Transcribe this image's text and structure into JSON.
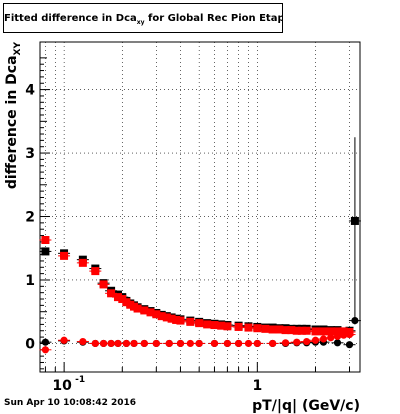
{
  "header": {
    "title_pre": "Fitted difference in Dca",
    "title_sub": "xy",
    "title_post": " for Global Rec Pion EtapT"
  },
  "footer": {
    "timestamp": "Sun Apr 10 10:08:42 2016"
  },
  "chart_data": {
    "type": "scatter",
    "xscale": "log",
    "xlim": [
      0.075,
      3.4
    ],
    "ylim": [
      -0.45,
      4.75
    ],
    "xlabel": "pT/|q| (GeV/c)",
    "ylabel_pre": "difference in Dca",
    "ylabel_sub": "XY",
    "grid": true,
    "x_tick_labels": [
      {
        "x": 0.1,
        "label": "10",
        "exp": "-1"
      },
      {
        "x": 1,
        "label": "1",
        "exp": ""
      }
    ],
    "y_tick_labels": [
      {
        "y": 0,
        "label": "0"
      },
      {
        "y": 1,
        "label": "1"
      },
      {
        "y": 2,
        "label": "2"
      },
      {
        "y": 3,
        "label": "3"
      },
      {
        "y": 4,
        "label": "4"
      }
    ],
    "series": [
      {
        "color": "#000000",
        "marker": "square",
        "points": [
          [
            0.08,
            1.45
          ],
          [
            0.0999,
            1.42
          ],
          [
            0.125,
            1.32
          ],
          [
            0.145,
            1.18
          ],
          [
            0.16,
            0.95
          ],
          [
            0.175,
            0.83
          ],
          [
            0.19,
            0.77
          ],
          [
            0.2,
            0.73
          ],
          [
            0.21,
            0.67
          ],
          [
            0.22,
            0.63
          ],
          [
            0.23,
            0.6
          ],
          [
            0.24,
            0.57
          ],
          [
            0.26,
            0.54
          ],
          [
            0.28,
            0.51
          ],
          [
            0.3,
            0.48
          ],
          [
            0.32,
            0.45
          ],
          [
            0.34,
            0.43
          ],
          [
            0.36,
            0.41
          ],
          [
            0.38,
            0.39
          ],
          [
            0.4,
            0.38
          ],
          [
            0.45,
            0.36
          ],
          [
            0.5,
            0.34
          ],
          [
            0.55,
            0.32
          ],
          [
            0.6,
            0.31
          ],
          [
            0.65,
            0.3
          ],
          [
            0.7,
            0.29
          ],
          [
            0.8,
            0.28
          ],
          [
            0.9,
            0.27
          ],
          [
            1.0,
            0.26
          ],
          [
            1.1,
            0.25
          ],
          [
            1.2,
            0.25
          ],
          [
            1.3,
            0.24
          ],
          [
            1.4,
            0.24
          ],
          [
            1.5,
            0.23
          ],
          [
            1.6,
            0.23
          ],
          [
            1.7,
            0.23
          ],
          [
            1.8,
            0.23
          ],
          [
            2.0,
            0.22
          ],
          [
            2.2,
            0.22
          ],
          [
            2.4,
            0.21
          ],
          [
            2.6,
            0.21
          ],
          [
            3.0,
            0.2
          ],
          [
            3.2,
            1.93
          ]
        ]
      },
      {
        "color": "#000000",
        "marker": "circle",
        "points": [
          [
            0.08,
            0.02
          ],
          [
            0.0999,
            0.04
          ],
          [
            0.125,
            0.02
          ],
          [
            0.145,
            0.0
          ],
          [
            0.16,
            0.0
          ],
          [
            0.175,
            0.0
          ],
          [
            0.19,
            0.0
          ],
          [
            0.21,
            0.0
          ],
          [
            0.23,
            0.0
          ],
          [
            0.26,
            0.0
          ],
          [
            0.3,
            0.0
          ],
          [
            0.35,
            0.0
          ],
          [
            0.4,
            0.0
          ],
          [
            0.5,
            0.0
          ],
          [
            0.6,
            0.0
          ],
          [
            0.7,
            0.0
          ],
          [
            0.8,
            0.0
          ],
          [
            1.0,
            0.0
          ],
          [
            1.2,
            0.0
          ],
          [
            1.4,
            0.0
          ],
          [
            1.6,
            0.01
          ],
          [
            1.8,
            0.01
          ],
          [
            2.0,
            0.02
          ],
          [
            2.2,
            0.02
          ],
          [
            2.6,
            0.01
          ],
          [
            3.0,
            -0.02
          ],
          [
            3.2,
            0.36
          ]
        ]
      },
      {
        "color": "#ff0000",
        "marker": "square",
        "points": [
          [
            0.08,
            1.63
          ],
          [
            0.0999,
            1.38
          ],
          [
            0.125,
            1.27
          ],
          [
            0.145,
            1.14
          ],
          [
            0.16,
            0.93
          ],
          [
            0.175,
            0.79
          ],
          [
            0.19,
            0.73
          ],
          [
            0.2,
            0.7
          ],
          [
            0.21,
            0.65
          ],
          [
            0.22,
            0.61
          ],
          [
            0.23,
            0.58
          ],
          [
            0.24,
            0.55
          ],
          [
            0.26,
            0.52
          ],
          [
            0.28,
            0.49
          ],
          [
            0.3,
            0.46
          ],
          [
            0.32,
            0.43
          ],
          [
            0.34,
            0.41
          ],
          [
            0.36,
            0.39
          ],
          [
            0.38,
            0.37
          ],
          [
            0.4,
            0.36
          ],
          [
            0.45,
            0.34
          ],
          [
            0.5,
            0.32
          ],
          [
            0.55,
            0.3
          ],
          [
            0.6,
            0.29
          ],
          [
            0.65,
            0.28
          ],
          [
            0.7,
            0.27
          ],
          [
            0.8,
            0.26
          ],
          [
            0.9,
            0.25
          ],
          [
            1.0,
            0.24
          ],
          [
            1.1,
            0.23
          ],
          [
            1.2,
            0.22
          ],
          [
            1.3,
            0.22
          ],
          [
            1.4,
            0.21
          ],
          [
            1.5,
            0.21
          ],
          [
            1.6,
            0.2
          ],
          [
            1.7,
            0.2
          ],
          [
            1.8,
            0.2
          ],
          [
            2.0,
            0.19
          ],
          [
            2.2,
            0.19
          ],
          [
            2.4,
            0.19
          ],
          [
            2.6,
            0.19
          ],
          [
            2.8,
            0.19
          ],
          [
            3.0,
            0.18
          ]
        ]
      },
      {
        "color": "#ff0000",
        "marker": "circle",
        "points": [
          [
            0.08,
            -0.1
          ],
          [
            0.0999,
            0.05
          ],
          [
            0.125,
            0.03
          ],
          [
            0.145,
            0.0
          ],
          [
            0.16,
            0.0
          ],
          [
            0.175,
            0.0
          ],
          [
            0.19,
            0.0
          ],
          [
            0.21,
            0.0
          ],
          [
            0.23,
            0.0
          ],
          [
            0.26,
            0.0
          ],
          [
            0.3,
            0.0
          ],
          [
            0.35,
            0.0
          ],
          [
            0.4,
            0.0
          ],
          [
            0.45,
            0.0
          ],
          [
            0.5,
            0.0
          ],
          [
            0.6,
            0.0
          ],
          [
            0.7,
            0.0
          ],
          [
            0.8,
            0.0
          ],
          [
            0.9,
            0.0
          ],
          [
            1.0,
            0.0
          ],
          [
            1.2,
            0.0
          ],
          [
            1.4,
            0.01
          ],
          [
            1.6,
            0.02
          ],
          [
            1.8,
            0.03
          ],
          [
            2.0,
            0.05
          ],
          [
            2.2,
            0.07
          ],
          [
            2.4,
            0.09
          ],
          [
            2.6,
            0.11
          ],
          [
            2.8,
            0.13
          ],
          [
            3.0,
            0.14
          ]
        ]
      }
    ],
    "error_bars": [
      {
        "x": 3.2,
        "y_low": 0.3,
        "y_high": 3.25
      }
    ]
  }
}
